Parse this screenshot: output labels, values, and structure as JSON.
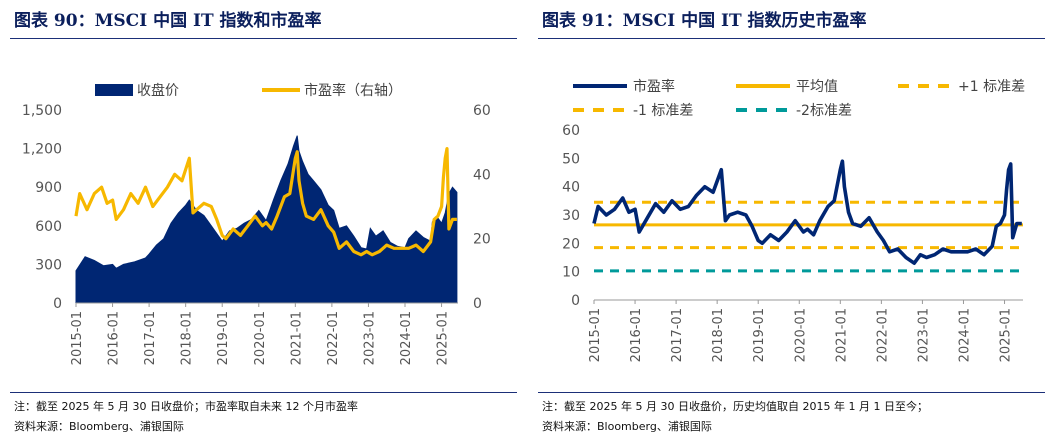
{
  "left": {
    "title": "图表 90：MSCI 中国 IT 指数和市盈率",
    "note1": "注：截至 2025 年 5 月 30 日收盘价；市盈率取自未来 12 个月市盈率",
    "note2": "资料来源：Bloomberg、浦银国际"
  },
  "right": {
    "title": "图表 91：MSCI 中国 IT 指数历史市盈率",
    "note1": "注：截至 2025 年 5 月 30 日收盘价，历史均值取自 2015 年 1 月 1 日至今；",
    "note2": "资料来源：Bloomberg、浦银国际"
  },
  "colors": {
    "navy": "#002673",
    "gold": "#f7b800",
    "teal": "#009a9a",
    "rule": "#1b2f78"
  },
  "chart_data": [
    {
      "type": "area",
      "legend": [
        {
          "name": "收盘价",
          "axis": "left",
          "color": "#002673"
        },
        {
          "name": "市盈率（右轴）",
          "axis": "right",
          "color": "#f7b800"
        }
      ],
      "x_ticks": [
        "2015-01",
        "2016-01",
        "2017-01",
        "2018-01",
        "2019-01",
        "2020-01",
        "2021-01",
        "2022-01",
        "2023-01",
        "2024-01",
        "2025-01"
      ],
      "y_left_ticks": [
        "1,500",
        "1,200",
        "900",
        "600",
        "300",
        "0"
      ],
      "y_right_ticks": [
        "60",
        "40",
        "20",
        "0"
      ],
      "ylim_left": [
        0,
        1500
      ],
      "ylim_right": [
        0,
        60
      ],
      "series": [
        {
          "name": "收盘价",
          "axis": "left",
          "kind": "area",
          "x": [
            2015.0,
            2015.25,
            2015.5,
            2015.75,
            2016.0,
            2016.1,
            2016.3,
            2016.6,
            2016.9,
            2017.0,
            2017.2,
            2017.4,
            2017.6,
            2017.8,
            2018.0,
            2018.1,
            2018.3,
            2018.5,
            2018.7,
            2018.9,
            2019.0,
            2019.2,
            2019.4,
            2019.6,
            2019.8,
            2020.0,
            2020.2,
            2020.4,
            2020.6,
            2020.8,
            2020.95,
            2021.05,
            2021.1,
            2021.2,
            2021.35,
            2021.5,
            2021.7,
            2021.9,
            2022.05,
            2022.2,
            2022.4,
            2022.6,
            2022.8,
            2022.95,
            2023.05,
            2023.2,
            2023.4,
            2023.6,
            2023.8,
            2024.0,
            2024.1,
            2024.3,
            2024.5,
            2024.7,
            2024.75,
            2024.9,
            2025.0,
            2025.1,
            2025.2,
            2025.3,
            2025.42
          ],
          "values": [
            250,
            360,
            330,
            290,
            300,
            270,
            300,
            320,
            350,
            380,
            450,
            500,
            620,
            700,
            760,
            800,
            720,
            680,
            600,
            520,
            480,
            560,
            580,
            620,
            650,
            720,
            640,
            800,
            950,
            1080,
            1220,
            1300,
            1180,
            1100,
            1000,
            950,
            880,
            760,
            720,
            580,
            600,
            520,
            430,
            420,
            580,
            520,
            560,
            470,
            440,
            430,
            500,
            560,
            510,
            480,
            630,
            660,
            620,
            700,
            850,
            900,
            860
          ]
        },
        {
          "name": "市盈率（右轴）",
          "axis": "right",
          "kind": "line",
          "x": [
            2015.0,
            2015.1,
            2015.3,
            2015.5,
            2015.7,
            2015.85,
            2016.0,
            2016.1,
            2016.3,
            2016.5,
            2016.7,
            2016.9,
            2017.1,
            2017.3,
            2017.5,
            2017.7,
            2017.9,
            2018.1,
            2018.2,
            2018.3,
            2018.5,
            2018.7,
            2018.85,
            2019.0,
            2019.1,
            2019.3,
            2019.5,
            2019.7,
            2019.9,
            2020.1,
            2020.2,
            2020.35,
            2020.5,
            2020.7,
            2020.85,
            2021.0,
            2021.05,
            2021.1,
            2021.2,
            2021.3,
            2021.5,
            2021.7,
            2021.9,
            2022.05,
            2022.2,
            2022.4,
            2022.6,
            2022.8,
            2022.95,
            2023.1,
            2023.3,
            2023.5,
            2023.7,
            2023.9,
            2024.1,
            2024.3,
            2024.5,
            2024.7,
            2024.8,
            2024.9,
            2025.0,
            2025.05,
            2025.1,
            2025.15,
            2025.2,
            2025.3,
            2025.42
          ],
          "values": [
            27,
            34,
            29,
            34,
            36,
            31,
            32,
            26,
            29,
            34,
            31,
            36,
            30,
            33,
            36,
            40,
            38,
            45,
            28,
            29,
            31,
            30,
            26,
            21,
            20,
            23,
            21,
            24,
            27,
            24,
            25,
            23,
            27,
            33,
            34,
            45,
            47,
            38,
            31,
            27,
            26,
            29,
            24,
            22,
            17,
            19,
            16,
            15,
            16,
            15,
            16,
            18,
            17,
            17,
            17,
            18,
            16,
            19,
            26,
            27,
            30,
            39,
            45,
            48,
            23,
            26,
            26
          ]
        }
      ]
    },
    {
      "type": "line",
      "legend": [
        {
          "name": "市盈率",
          "color": "#002673",
          "style": "solid"
        },
        {
          "name": "平均值",
          "color": "#f7b800",
          "style": "solid"
        },
        {
          "name": "+1 标准差",
          "color": "#f7b800",
          "style": "dashed"
        },
        {
          "name": "-1 标准差",
          "color": "#f7b800",
          "style": "dashed"
        },
        {
          "name": "-2标准差",
          "color": "#009a9a",
          "style": "dashed"
        }
      ],
      "x_ticks": [
        "2015-01",
        "2016-01",
        "2017-01",
        "2018-01",
        "2019-01",
        "2020-01",
        "2021-01",
        "2022-01",
        "2023-01",
        "2024-01",
        "2025-01"
      ],
      "y_ticks": [
        "60",
        "50",
        "40",
        "30",
        "20",
        "10",
        "0"
      ],
      "ylim": [
        0,
        60
      ],
      "reference_lines": {
        "平均值": 26.5,
        "+1 标准差": 34.5,
        "-1 标准差": 18.5,
        "-2标准差": 10.3
      },
      "series": [
        {
          "name": "市盈率",
          "x": [
            2015.0,
            2015.1,
            2015.3,
            2015.5,
            2015.7,
            2015.85,
            2016.0,
            2016.1,
            2016.3,
            2016.5,
            2016.7,
            2016.9,
            2017.1,
            2017.3,
            2017.5,
            2017.7,
            2017.9,
            2018.1,
            2018.2,
            2018.3,
            2018.5,
            2018.7,
            2018.85,
            2019.0,
            2019.1,
            2019.3,
            2019.5,
            2019.7,
            2019.9,
            2020.1,
            2020.2,
            2020.35,
            2020.5,
            2020.7,
            2020.85,
            2021.0,
            2021.05,
            2021.1,
            2021.2,
            2021.3,
            2021.5,
            2021.7,
            2021.9,
            2022.05,
            2022.2,
            2022.4,
            2022.6,
            2022.8,
            2022.95,
            2023.1,
            2023.3,
            2023.5,
            2023.7,
            2023.9,
            2024.1,
            2024.3,
            2024.5,
            2024.7,
            2024.8,
            2024.9,
            2025.0,
            2025.05,
            2025.1,
            2025.15,
            2025.2,
            2025.3,
            2025.42
          ],
          "values": [
            27,
            33,
            30,
            32,
            36,
            31,
            32,
            24,
            29,
            34,
            31,
            35,
            32,
            33,
            37,
            40,
            38,
            46,
            28,
            30,
            31,
            30,
            26,
            21,
            20,
            23,
            21,
            24,
            28,
            24,
            25,
            23,
            28,
            33,
            35,
            46,
            49,
            40,
            31,
            27,
            26,
            29,
            24,
            21,
            17,
            18,
            15,
            13,
            16,
            15,
            16,
            18,
            17,
            17,
            17,
            18,
            16,
            19,
            26,
            27,
            30,
            39,
            46,
            48,
            22,
            27,
            27
          ]
        }
      ]
    }
  ]
}
